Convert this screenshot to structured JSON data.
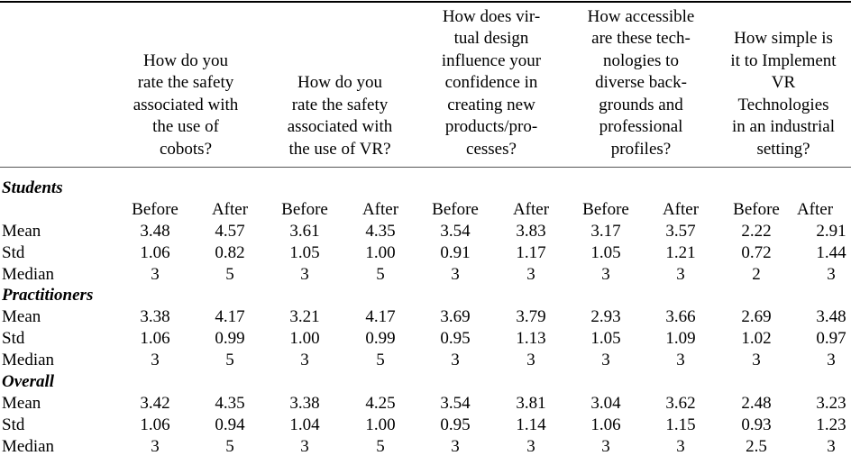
{
  "headers": [
    [
      "How do you",
      "rate the safety",
      "associated with",
      "the use of",
      "cobots?"
    ],
    [
      "How do you",
      "rate the safety",
      "associated with",
      "the use of VR?"
    ],
    [
      "How does vir-",
      "tual design",
      "influence your",
      "confidence in",
      "creating new",
      "products/pro-",
      "cesses?"
    ],
    [
      "How accessible",
      "are these tech-",
      "nologies to",
      "diverse back-",
      "grounds and",
      "professional",
      "profiles?"
    ],
    [
      "How simple is",
      "it to Implement",
      "VR",
      "Technologies",
      "in an industrial",
      "setting?"
    ]
  ],
  "before_label": "Before",
  "after_label": "After",
  "groups": [
    {
      "name": "Students",
      "rows": [
        {
          "label": "Mean",
          "values": [
            "3.48",
            "4.57",
            "3.61",
            "4.35",
            "3.54",
            "3.83",
            "3.17",
            "3.57",
            "2.22",
            "2.91"
          ]
        },
        {
          "label": "Std",
          "values": [
            "1.06",
            "0.82",
            "1.05",
            "1.00",
            "0.91",
            "1.17",
            "1.05",
            "1.21",
            "0.72",
            "1.44"
          ]
        },
        {
          "label": "Median",
          "values": [
            "3",
            "5",
            "3",
            "5",
            "3",
            "3",
            "3",
            "3",
            "2",
            "3"
          ]
        }
      ]
    },
    {
      "name": "Practitioners",
      "rows": [
        {
          "label": "Mean",
          "values": [
            "3.38",
            "4.17",
            "3.21",
            "4.17",
            "3.69",
            "3.79",
            "2.93",
            "3.66",
            "2.69",
            "3.48"
          ]
        },
        {
          "label": "Std",
          "values": [
            "1.06",
            "0.99",
            "1.00",
            "0.99",
            "0.95",
            "1.13",
            "1.05",
            "1.09",
            "1.02",
            "0.97"
          ]
        },
        {
          "label": "Median",
          "values": [
            "3",
            "5",
            "3",
            "5",
            "3",
            "3",
            "3",
            "3",
            "3",
            "3"
          ]
        }
      ]
    },
    {
      "name": "Overall",
      "rows": [
        {
          "label": "Mean",
          "values": [
            "3.42",
            "4.35",
            "3.38",
            "4.25",
            "3.54",
            "3.81",
            "3.04",
            "3.62",
            "2.48",
            "3.23"
          ]
        },
        {
          "label": "Std",
          "values": [
            "1.06",
            "0.94",
            "1.04",
            "1.00",
            "0.95",
            "1.14",
            "1.06",
            "1.15",
            "0.93",
            "1.23"
          ]
        },
        {
          "label": "Median",
          "values": [
            "3",
            "5",
            "3",
            "5",
            "3",
            "3",
            "3",
            "3",
            "2.5",
            "3"
          ]
        }
      ]
    }
  ]
}
